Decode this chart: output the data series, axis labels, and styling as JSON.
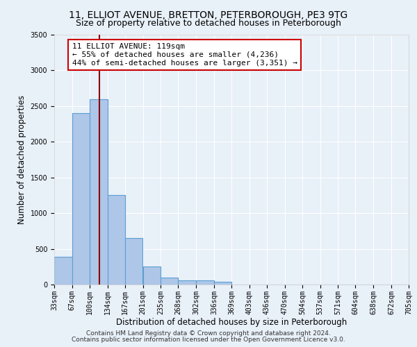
{
  "title": "11, ELLIOT AVENUE, BRETTON, PETERBOROUGH, PE3 9TG",
  "subtitle": "Size of property relative to detached houses in Peterborough",
  "xlabel": "Distribution of detached houses by size in Peterborough",
  "ylabel": "Number of detached properties",
  "bar_edges": [
    33,
    67,
    100,
    134,
    167,
    201,
    235,
    268,
    302,
    336,
    369,
    403,
    436,
    470,
    504,
    537,
    571,
    604,
    638,
    672,
    705
  ],
  "bar_heights": [
    390,
    2400,
    2600,
    1250,
    650,
    255,
    100,
    60,
    60,
    40,
    0,
    0,
    0,
    0,
    0,
    0,
    0,
    0,
    0,
    0
  ],
  "bar_color": "#aec6e8",
  "bar_edge_color": "#5a9fd4",
  "bar_linewidth": 0.8,
  "property_line_x": 119,
  "property_line_color": "#8b0000",
  "annotation_line1": "11 ELLIOT AVENUE: 119sqm",
  "annotation_line2": "← 55% of detached houses are smaller (4,236)",
  "annotation_line3": "44% of semi-detached houses are larger (3,351) →",
  "annotation_box_color": "#ffffff",
  "annotation_box_edgecolor": "#cc0000",
  "ylim": [
    0,
    3500
  ],
  "yticks": [
    0,
    500,
    1000,
    1500,
    2000,
    2500,
    3000,
    3500
  ],
  "background_color": "#e8f0f8",
  "grid_color": "#ffffff",
  "footer_line1": "Contains HM Land Registry data © Crown copyright and database right 2024.",
  "footer_line2": "Contains public sector information licensed under the Open Government Licence v3.0.",
  "title_fontsize": 10,
  "subtitle_fontsize": 9,
  "axis_label_fontsize": 8.5,
  "tick_fontsize": 7,
  "annotation_fontsize": 8,
  "footer_fontsize": 6.5
}
